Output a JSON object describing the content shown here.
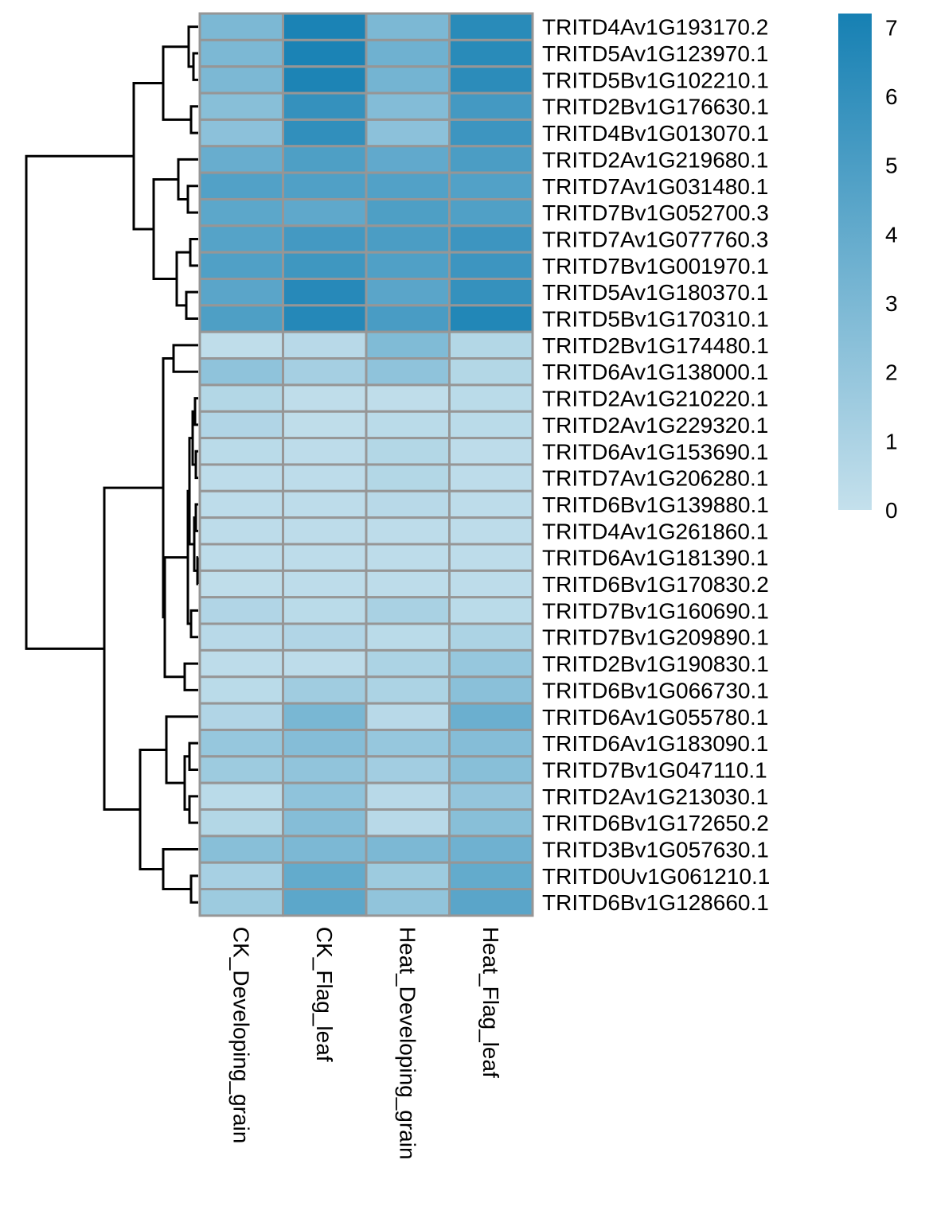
{
  "chart_data": {
    "type": "heatmap",
    "title": "",
    "columns": [
      "CK_Developing_grain",
      "CK_Flag_leaf",
      "Heat_Developing_grain",
      "Heat_Flag_leaf"
    ],
    "rows": [
      "TRITD4Av1G193170.2",
      "TRITD5Av1G123970.1",
      "TRITD5Bv1G102210.1",
      "TRITD2Bv1G176630.1",
      "TRITD4Bv1G013070.1",
      "TRITD2Av1G219680.1",
      "TRITD7Av1G031480.1",
      "TRITD7Bv1G052700.3",
      "TRITD7Av1G077760.3",
      "TRITD7Bv1G001970.1",
      "TRITD5Av1G180370.1",
      "TRITD5Bv1G170310.1",
      "TRITD2Bv1G174480.1",
      "TRITD6Av1G138000.1",
      "TRITD2Av1G210220.1",
      "TRITD2Av1G229320.1",
      "TRITD6Av1G153690.1",
      "TRITD7Av1G206280.1",
      "TRITD6Bv1G139880.1",
      "TRITD4Av1G261860.1",
      "TRITD6Av1G181390.1",
      "TRITD6Bv1G170830.2",
      "TRITD7Bv1G160690.1",
      "TRITD7Bv1G209890.1",
      "TRITD2Bv1G190830.1",
      "TRITD6Bv1G066730.1",
      "TRITD6Av1G055780.1",
      "TRITD6Av1G183090.1",
      "TRITD7Bv1G047110.1",
      "TRITD2Av1G213030.1",
      "TRITD6Bv1G172650.2",
      "TRITD3Bv1G057630.1",
      "TRITD0Uv1G061210.1",
      "TRITD6Bv1G128660.1"
    ],
    "values": [
      [
        3.0,
        7.0,
        3.0,
        6.4
      ],
      [
        3.0,
        7.0,
        3.5,
        6.4
      ],
      [
        3.0,
        6.9,
        3.3,
        6.3
      ],
      [
        2.5,
        5.9,
        2.7,
        5.3
      ],
      [
        2.3,
        6.1,
        2.3,
        5.6
      ],
      [
        3.8,
        4.9,
        4.1,
        5.0
      ],
      [
        4.7,
        4.8,
        4.7,
        4.7
      ],
      [
        4.3,
        4.2,
        4.9,
        4.8
      ],
      [
        4.6,
        5.3,
        5.0,
        5.6
      ],
      [
        4.8,
        5.5,
        4.8,
        5.6
      ],
      [
        4.4,
        6.5,
        4.4,
        5.9
      ],
      [
        4.9,
        6.6,
        5.1,
        6.7
      ],
      [
        0.2,
        0.5,
        2.8,
        0.7
      ],
      [
        2.2,
        1.3,
        2.2,
        0.7
      ],
      [
        0.7,
        0.2,
        0.2,
        0.4
      ],
      [
        0.8,
        0.2,
        0.4,
        0.4
      ],
      [
        0.4,
        0.3,
        0.7,
        0.3
      ],
      [
        0.3,
        0.3,
        0.7,
        0.3
      ],
      [
        0.3,
        0.3,
        0.5,
        0.3
      ],
      [
        0.3,
        0.3,
        0.3,
        0.3
      ],
      [
        0.3,
        0.3,
        0.3,
        0.3
      ],
      [
        0.2,
        0.3,
        0.3,
        0.3
      ],
      [
        0.8,
        0.4,
        1.1,
        0.4
      ],
      [
        0.5,
        0.8,
        0.4,
        1.0
      ],
      [
        0.3,
        0.3,
        1.0,
        1.9
      ],
      [
        0.4,
        1.5,
        1.0,
        2.4
      ],
      [
        0.8,
        3.1,
        0.5,
        3.7
      ],
      [
        1.9,
        2.6,
        1.9,
        2.6
      ],
      [
        1.6,
        2.1,
        1.4,
        2.5
      ],
      [
        0.4,
        2.2,
        0.5,
        2.0
      ],
      [
        0.7,
        2.6,
        0.5,
        2.5
      ],
      [
        2.5,
        3.0,
        3.0,
        3.5
      ],
      [
        1.2,
        4.0,
        1.6,
        4.0
      ],
      [
        1.6,
        4.3,
        2.1,
        4.4
      ]
    ],
    "color_scale": {
      "min": 0,
      "max": 7.2,
      "low_color": "#c4e0ec",
      "high_color": "#1680b3",
      "ticks": [
        0,
        1,
        2,
        3,
        4,
        5,
        6,
        7
      ]
    },
    "cell_border_color": "#969696",
    "row_dendrogram": true,
    "col_dendrogram": false,
    "legend_position": "right"
  }
}
